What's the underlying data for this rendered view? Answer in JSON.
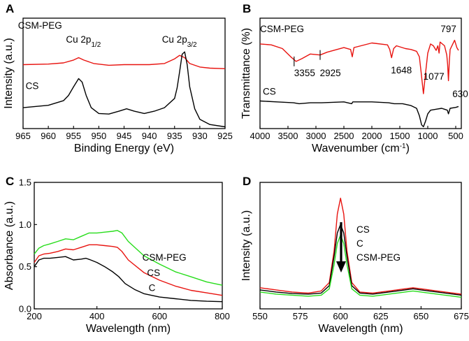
{
  "chart_data": [
    {
      "type": "line",
      "panel": "A",
      "xlabel": "Binding Energy (eV)",
      "ylabel": "Intensity (a.u.)",
      "xlim": [
        965,
        925
      ],
      "ylim": [
        0,
        1.9
      ],
      "ticks": [
        "965",
        "960",
        "955",
        "950",
        "945",
        "940",
        "935",
        "930",
        "925"
      ],
      "tick_values": [
        965,
        960,
        955,
        950,
        945,
        940,
        935,
        930,
        925
      ],
      "annotations": [
        {
          "text": "CSM-PEG",
          "x": 966,
          "y": 1.72
        },
        {
          "text": "CS",
          "x": 964.5,
          "y": 0.68
        },
        {
          "text": "Cu 2p",
          "sub": "1/2",
          "x": 956.5,
          "y": 1.48
        },
        {
          "text": "Cu 2p",
          "sub": "3/2",
          "x": 937.5,
          "y": 1.48
        }
      ],
      "series": [
        {
          "name": "CSM-PEG",
          "color": "#e8130f",
          "x": [
            965,
            960,
            957,
            955,
            954,
            953,
            951,
            948,
            945,
            942,
            940,
            937,
            935,
            934,
            933,
            932,
            930,
            928,
            925
          ],
          "y": [
            1.1,
            1.11,
            1.13,
            1.18,
            1.22,
            1.18,
            1.12,
            1.09,
            1.1,
            1.1,
            1.1,
            1.12,
            1.2,
            1.26,
            1.22,
            1.12,
            1.06,
            1.04,
            1.03
          ]
        },
        {
          "name": "CS",
          "color": "#000000",
          "x": [
            965,
            960,
            957,
            956,
            955,
            954,
            953.3,
            952.5,
            951.5,
            950,
            948,
            946,
            944.5,
            943,
            941,
            939,
            937,
            935,
            934.5,
            934,
            933.5,
            933,
            932.5,
            932,
            931,
            930,
            928,
            925
          ],
          "y": [
            0.36,
            0.4,
            0.48,
            0.57,
            0.72,
            0.86,
            0.8,
            0.57,
            0.36,
            0.26,
            0.25,
            0.3,
            0.34,
            0.3,
            0.26,
            0.3,
            0.36,
            0.52,
            0.7,
            0.98,
            1.28,
            1.32,
            1.1,
            0.72,
            0.34,
            0.16,
            0.07,
            0.03
          ]
        }
      ]
    },
    {
      "type": "line",
      "panel": "B",
      "xlabel": "Wavenumber (cm",
      "xlabel_sup": "-1",
      "xlabel_close": ")",
      "ylabel": "Transmittance (%)",
      "xlim": [
        4000,
        400
      ],
      "ylim": [
        0,
        1.2
      ],
      "ticks": [
        "4000",
        "3500",
        "3000",
        "2500",
        "2000",
        "1500",
        "1000",
        "500"
      ],
      "tick_values": [
        4000,
        3500,
        3000,
        2500,
        2000,
        1500,
        1000,
        500
      ],
      "annotations": [
        {
          "text": "CSM-PEG",
          "x": 4000,
          "y": 1.05
        },
        {
          "text": "CS",
          "x": 3950,
          "y": 0.37
        },
        {
          "text": "3355",
          "x": 3390,
          "y": 0.57
        },
        {
          "text": "2925",
          "x": 2930,
          "y": 0.57
        },
        {
          "text": "1648",
          "x": 1660,
          "y": 0.6
        },
        {
          "text": "1077",
          "x": 1080,
          "y": 0.53
        },
        {
          "text": "797",
          "x": 770,
          "y": 1.05
        },
        {
          "text": "630",
          "x": 560,
          "y": 0.34
        }
      ],
      "series": [
        {
          "name": "CSM-PEG",
          "color": "#e8130f",
          "x": [
            4000,
            3800,
            3600,
            3450,
            3355,
            3250,
            3100,
            2925,
            2800,
            2500,
            2380,
            2350,
            2320,
            2000,
            1720,
            1680,
            1648,
            1610,
            1560,
            1400,
            1300,
            1200,
            1150,
            1120,
            1077,
            1040,
            1000,
            950,
            900,
            850,
            820,
            797,
            780,
            700,
            660,
            645,
            630,
            615,
            600,
            520,
            480,
            450
          ],
          "y": [
            0.92,
            0.91,
            0.87,
            0.78,
            0.73,
            0.76,
            0.81,
            0.8,
            0.83,
            0.88,
            0.86,
            0.78,
            0.88,
            0.93,
            0.91,
            0.86,
            0.77,
            0.87,
            0.9,
            0.87,
            0.86,
            0.84,
            0.78,
            0.62,
            0.38,
            0.6,
            0.82,
            0.92,
            0.9,
            0.85,
            0.9,
            0.82,
            0.94,
            0.9,
            0.8,
            0.7,
            0.52,
            0.72,
            0.86,
            0.96,
            0.88,
            0.85
          ]
        },
        {
          "name": "CS",
          "color": "#000000",
          "x": [
            4000,
            3700,
            3400,
            3300,
            3100,
            2900,
            2500,
            2360,
            2340,
            2000,
            1700,
            1600,
            1450,
            1300,
            1200,
            1150,
            1110,
            1077,
            1040,
            1000,
            950,
            850,
            750,
            650,
            630,
            600,
            500,
            450
          ],
          "y": [
            0.3,
            0.29,
            0.28,
            0.27,
            0.28,
            0.28,
            0.29,
            0.27,
            0.29,
            0.29,
            0.28,
            0.27,
            0.27,
            0.25,
            0.22,
            0.14,
            0.04,
            0.02,
            0.08,
            0.16,
            0.2,
            0.21,
            0.22,
            0.2,
            0.16,
            0.22,
            0.23,
            0.24
          ]
        }
      ]
    },
    {
      "type": "line",
      "panel": "C",
      "xlabel": "Wavelength (nm)",
      "ylabel": "Absorbance (a.u.)",
      "xlim": [
        200,
        800
      ],
      "ylim": [
        0.0,
        1.5
      ],
      "xticks": [
        "200",
        "400",
        "600",
        "800"
      ],
      "xtick_values": [
        200,
        400,
        600,
        800
      ],
      "yticks": [
        "0.0",
        "0.5",
        "1.0",
        "1.5"
      ],
      "ytick_values": [
        0,
        0.5,
        1.0,
        1.5
      ],
      "annotations": [
        {
          "text": "CSM-PEG",
          "x": 545,
          "y": 0.57
        },
        {
          "text": "CS",
          "x": 560,
          "y": 0.39
        },
        {
          "text": "C",
          "x": 565,
          "y": 0.21
        }
      ],
      "series": [
        {
          "name": "CSM-PEG",
          "color": "#27dd1b",
          "x": [
            200,
            215,
            230,
            250,
            275,
            300,
            325,
            350,
            375,
            400,
            425,
            450,
            465,
            480,
            500,
            550,
            600,
            650,
            700,
            750,
            800
          ],
          "y": [
            0.65,
            0.72,
            0.75,
            0.77,
            0.8,
            0.83,
            0.82,
            0.86,
            0.9,
            0.9,
            0.91,
            0.92,
            0.93,
            0.9,
            0.8,
            0.63,
            0.53,
            0.44,
            0.38,
            0.32,
            0.28
          ]
        },
        {
          "name": "CS",
          "color": "#e8130f",
          "x": [
            200,
            215,
            230,
            250,
            275,
            300,
            325,
            350,
            375,
            400,
            425,
            450,
            465,
            480,
            500,
            550,
            600,
            650,
            700,
            750,
            800
          ],
          "y": [
            0.55,
            0.63,
            0.65,
            0.66,
            0.68,
            0.71,
            0.7,
            0.73,
            0.76,
            0.76,
            0.75,
            0.74,
            0.73,
            0.68,
            0.58,
            0.43,
            0.34,
            0.27,
            0.22,
            0.19,
            0.16
          ]
        },
        {
          "name": "C",
          "color": "#000000",
          "x": [
            200,
            215,
            230,
            250,
            275,
            300,
            325,
            350,
            365,
            380,
            400,
            425,
            450,
            470,
            490,
            520,
            550,
            600,
            650,
            700,
            750,
            800
          ],
          "y": [
            0.5,
            0.58,
            0.6,
            0.6,
            0.61,
            0.62,
            0.58,
            0.59,
            0.6,
            0.58,
            0.55,
            0.5,
            0.44,
            0.38,
            0.3,
            0.23,
            0.18,
            0.14,
            0.12,
            0.1,
            0.09,
            0.085
          ]
        }
      ]
    },
    {
      "type": "line",
      "panel": "D",
      "xlabel": "Wavelength (nm)",
      "ylabel": "Intensity (a.u.)",
      "xlim": [
        550,
        675
      ],
      "ylim": [
        0,
        1.2
      ],
      "xticks": [
        "550",
        "575",
        "600",
        "625",
        "650",
        "675"
      ],
      "xtick_values": [
        550,
        575,
        600,
        625,
        650,
        675
      ],
      "legend_items": [
        "CS",
        "C",
        "CSM-PEG"
      ],
      "series": [
        {
          "name": "CS",
          "color": "#e8130f",
          "x": [
            550,
            560,
            570,
            580,
            588,
            593,
            596,
            598,
            600,
            602,
            604,
            607,
            612,
            620,
            630,
            640,
            645,
            650,
            660,
            670,
            675
          ],
          "y": [
            0.2,
            0.18,
            0.16,
            0.15,
            0.17,
            0.25,
            0.55,
            0.9,
            1.05,
            0.9,
            0.55,
            0.25,
            0.16,
            0.15,
            0.17,
            0.19,
            0.2,
            0.19,
            0.17,
            0.15,
            0.14
          ]
        },
        {
          "name": "C",
          "color": "#000000",
          "x": [
            550,
            560,
            570,
            580,
            588,
            593,
            596,
            598,
            600,
            602,
            604,
            607,
            612,
            620,
            630,
            640,
            645,
            650,
            660,
            670,
            675
          ],
          "y": [
            0.18,
            0.16,
            0.145,
            0.14,
            0.15,
            0.22,
            0.5,
            0.72,
            0.8,
            0.72,
            0.5,
            0.22,
            0.15,
            0.14,
            0.16,
            0.18,
            0.19,
            0.18,
            0.16,
            0.14,
            0.13
          ]
        },
        {
          "name": "CSM-PEG",
          "color": "#27dd1b",
          "x": [
            550,
            560,
            570,
            580,
            588,
            593,
            596,
            598,
            600,
            602,
            604,
            607,
            612,
            620,
            630,
            640,
            645,
            650,
            660,
            670,
            675
          ],
          "y": [
            0.16,
            0.14,
            0.13,
            0.12,
            0.13,
            0.19,
            0.42,
            0.62,
            0.7,
            0.62,
            0.42,
            0.19,
            0.13,
            0.12,
            0.14,
            0.16,
            0.17,
            0.16,
            0.14,
            0.12,
            0.11
          ]
        }
      ]
    }
  ]
}
